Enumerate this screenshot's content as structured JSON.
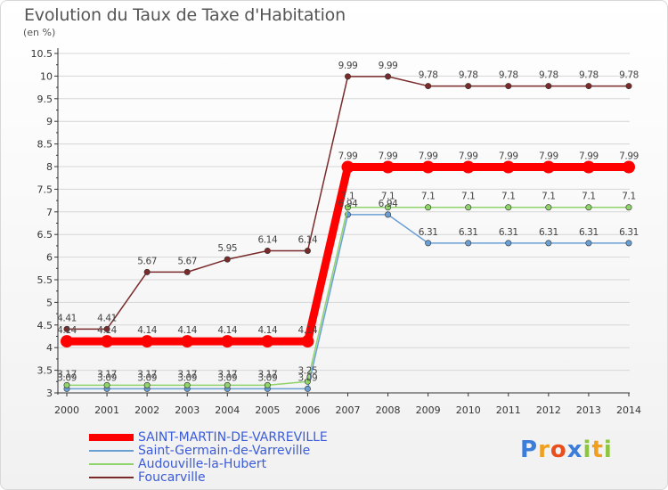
{
  "header": {
    "title": "Evolution du Taux de Taxe d'Habitation",
    "subtitle": "(en %)"
  },
  "logo": {
    "text": "Proxiti"
  },
  "chart_data": {
    "type": "line",
    "title": "Evolution du Taux de Taxe d'Habitation",
    "ylabel": "(en %)",
    "xlabel": "",
    "x": [
      "2000",
      "2001",
      "2002",
      "2003",
      "2004",
      "2005",
      "2006",
      "2007",
      "2008",
      "2009",
      "2010",
      "2011",
      "2012",
      "2013",
      "2014"
    ],
    "ylim": [
      3,
      10.5
    ],
    "yticks": [
      "3",
      "3.5",
      "4",
      "4.5",
      "5",
      "5.5",
      "6",
      "6.5",
      "7",
      "7.5",
      "8",
      "8.5",
      "9",
      "9.5",
      "10",
      "10.5"
    ],
    "grid": "horizontal",
    "legend_position": "bottom-left",
    "series": [
      {
        "name": "SAINT-MARTIN-DE-VARREVILLE",
        "color": "#ff0000",
        "values": [
          4.14,
          4.14,
          4.14,
          4.14,
          4.14,
          4.14,
          4.14,
          7.99,
          7.99,
          7.99,
          7.99,
          7.99,
          7.99,
          7.99,
          7.99
        ],
        "labels": [
          "4.14",
          "4.14",
          "4.14",
          "4.14",
          "4.14",
          "4.14",
          "4.14",
          "7.99",
          "7.99",
          "7.99",
          "7.99",
          "7.99",
          "7.99",
          "7.99",
          "7.99"
        ]
      },
      {
        "name": "Saint-Germain-de-Varreville",
        "color": "#6a9fd4",
        "values": [
          3.09,
          3.09,
          3.09,
          3.09,
          3.09,
          3.09,
          3.09,
          6.94,
          6.94,
          6.31,
          6.31,
          6.31,
          6.31,
          6.31,
          6.31
        ],
        "labels": [
          "3.09",
          "3.09",
          "3.09",
          "3.09",
          "3.09",
          "3.09",
          "3.09",
          "6.94",
          "6.94",
          "6.31",
          "6.31",
          "6.31",
          "6.31",
          "6.31",
          "6.31"
        ]
      },
      {
        "name": "Audouville-la-Hubert",
        "color": "#8fd36a",
        "values": [
          3.17,
          3.17,
          3.17,
          3.17,
          3.17,
          3.17,
          3.25,
          7.1,
          7.1,
          7.1,
          7.1,
          7.1,
          7.1,
          7.1,
          7.1
        ],
        "labels": [
          "3.17",
          "3.17",
          "3.17",
          "3.17",
          "3.17",
          "3.17",
          "3.25",
          "7.1",
          "7.1",
          "7.1",
          "7.1",
          "7.1",
          "7.1",
          "7.1",
          "7.1"
        ]
      },
      {
        "name": "Foucarville",
        "color": "#7a2a2a",
        "values": [
          4.41,
          4.41,
          5.67,
          5.67,
          5.95,
          6.14,
          6.14,
          9.99,
          9.99,
          9.78,
          9.78,
          9.78,
          9.78,
          9.78,
          9.78
        ],
        "labels": [
          "4.41",
          "4.41",
          "5.67",
          "5.67",
          "5.95",
          "6.14",
          "6.14",
          "9.99",
          "9.99",
          "9.78",
          "9.78",
          "9.78",
          "9.78",
          "9.78",
          "9.78"
        ]
      }
    ]
  }
}
